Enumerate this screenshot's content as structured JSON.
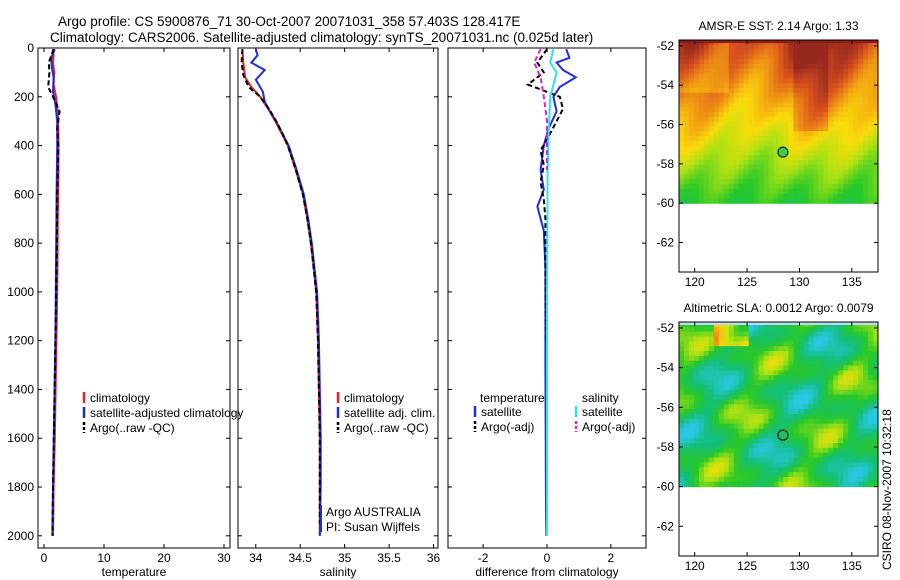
{
  "title": {
    "line1": "Argo profile: CS 5900876_71 30-Oct-2007 20071031_358 57.403S 128.417E",
    "line2": "Climatology: CARS2006. Satellite-adjusted climatology: synTS_20071031.nc (0.025d later)"
  },
  "side_label": "CSIRO 08-Nov-2007 10:32:18",
  "colors": {
    "climatology": "#e8201e",
    "satellite": "#1f2cde",
    "argo": "#000000",
    "sat_salinity": "#2ee6e6",
    "argo_adj_salinity": "#e020d8"
  },
  "chart_data": [
    {
      "type": "line",
      "name": "temperature-profile",
      "xlabel": "temperature",
      "xlim": [
        -1,
        31
      ],
      "ylim": [
        2050,
        0
      ],
      "xticks": [
        "0",
        "10",
        "20",
        "30"
      ],
      "xtick_values": [
        0,
        10,
        20,
        30
      ],
      "yticks": [
        "0",
        "200",
        "400",
        "600",
        "800",
        "1000",
        "1200",
        "1400",
        "1600",
        "1800",
        "2000"
      ],
      "ytick_values": [
        0,
        200,
        400,
        600,
        800,
        1000,
        1200,
        1400,
        1600,
        1800,
        2000
      ],
      "legend": [
        "climatology",
        "satellite-adjusted climatology",
        "Argo(..raw -QC)"
      ],
      "series": [
        {
          "name": "climatology",
          "color": "#e8201e",
          "dash": false,
          "points": [
            [
              1.5,
              5
            ],
            [
              1.6,
              30
            ],
            [
              1.5,
              60
            ],
            [
              1.7,
              100
            ],
            [
              1.6,
              150
            ],
            [
              2.0,
              200
            ],
            [
              2.3,
              260
            ],
            [
              2.4,
              350
            ],
            [
              2.4,
              500
            ],
            [
              2.3,
              700
            ],
            [
              2.2,
              1000
            ],
            [
              2.0,
              1300
            ],
            [
              1.8,
              1600
            ],
            [
              1.6,
              1800
            ],
            [
              1.5,
              2000
            ]
          ]
        },
        {
          "name": "satellite",
          "color": "#1f2cde",
          "dash": false,
          "points": [
            [
              1.8,
              5
            ],
            [
              1.2,
              40
            ],
            [
              1.3,
              80
            ],
            [
              1.6,
              120
            ],
            [
              1.5,
              180
            ],
            [
              1.9,
              230
            ],
            [
              2.2,
              300
            ],
            [
              2.2,
              400
            ],
            [
              2.1,
              600
            ],
            [
              2.0,
              900
            ],
            [
              1.9,
              1200
            ],
            [
              1.7,
              1500
            ],
            [
              1.5,
              1800
            ],
            [
              1.4,
              2000
            ]
          ]
        },
        {
          "name": "argo",
          "color": "#000000",
          "dash": true,
          "points": [
            [
              1.6,
              5
            ],
            [
              0.8,
              60
            ],
            [
              0.9,
              100
            ],
            [
              0.7,
              160
            ],
            [
              1.5,
              200
            ],
            [
              2.6,
              260
            ],
            [
              2.2,
              330
            ],
            [
              2.4,
              400
            ],
            [
              2.2,
              600
            ],
            [
              2.1,
              900
            ],
            [
              1.9,
              1200
            ],
            [
              1.7,
              1500
            ],
            [
              1.5,
              1800
            ],
            [
              1.4,
              2000
            ]
          ]
        }
      ]
    },
    {
      "type": "line",
      "name": "salinity-profile",
      "xlabel": "salinity",
      "xlim": [
        33.8,
        36.05
      ],
      "ylim": [
        2050,
        0
      ],
      "xticks": [
        "34",
        "34.5",
        "35",
        "35.5",
        "36"
      ],
      "xtick_values": [
        34,
        34.5,
        35,
        35.5,
        36
      ],
      "legend": [
        "climatology",
        "satellite adj. clim.",
        "Argo(..raw -QC)"
      ],
      "annotations": [
        "Argo AUSTRALIA",
        "PI: Susan Wijffels"
      ],
      "series": [
        {
          "name": "climatology",
          "color": "#e8201e",
          "dash": false,
          "points": [
            [
              33.85,
              5
            ],
            [
              33.86,
              60
            ],
            [
              33.88,
              120
            ],
            [
              33.95,
              160
            ],
            [
              34.05,
              200
            ],
            [
              34.14,
              250
            ],
            [
              34.22,
              300
            ],
            [
              34.29,
              350
            ],
            [
              34.36,
              400
            ],
            [
              34.45,
              500
            ],
            [
              34.53,
              600
            ],
            [
              34.58,
              700
            ],
            [
              34.62,
              800
            ],
            [
              34.65,
              900
            ],
            [
              34.68,
              1000
            ],
            [
              34.7,
              1200
            ],
            [
              34.71,
              1400
            ],
            [
              34.72,
              1600
            ],
            [
              34.72,
              1800
            ],
            [
              34.72,
              2000
            ]
          ]
        },
        {
          "name": "satellite",
          "color": "#1f2cde",
          "dash": false,
          "points": [
            [
              34.0,
              5
            ],
            [
              34.02,
              30
            ],
            [
              33.95,
              60
            ],
            [
              34.1,
              90
            ],
            [
              34.0,
              130
            ],
            [
              34.08,
              180
            ],
            [
              34.1,
              220
            ],
            [
              34.16,
              260
            ],
            [
              34.23,
              300
            ],
            [
              34.3,
              350
            ],
            [
              34.37,
              400
            ],
            [
              34.46,
              500
            ],
            [
              34.54,
              600
            ],
            [
              34.59,
              700
            ],
            [
              34.63,
              800
            ],
            [
              34.66,
              900
            ],
            [
              34.69,
              1000
            ],
            [
              34.71,
              1200
            ],
            [
              34.72,
              1400
            ],
            [
              34.73,
              1600
            ],
            [
              34.73,
              1800
            ],
            [
              34.72,
              2000
            ]
          ]
        },
        {
          "name": "argo",
          "color": "#000000",
          "dash": true,
          "points": [
            [
              33.85,
              5
            ],
            [
              33.84,
              60
            ],
            [
              33.86,
              110
            ],
            [
              33.92,
              160
            ],
            [
              34.05,
              200
            ],
            [
              34.15,
              250
            ],
            [
              34.23,
              300
            ],
            [
              34.3,
              350
            ],
            [
              34.36,
              400
            ],
            [
              34.45,
              500
            ],
            [
              34.53,
              600
            ],
            [
              34.58,
              700
            ],
            [
              34.62,
              800
            ],
            [
              34.65,
              900
            ],
            [
              34.68,
              1000
            ],
            [
              34.7,
              1200
            ],
            [
              34.71,
              1400
            ],
            [
              34.72,
              1600
            ],
            [
              34.72,
              1800
            ],
            [
              34.72,
              1950
            ]
          ]
        }
      ]
    },
    {
      "type": "line",
      "name": "difference-profile",
      "xlabel": "difference from climatology",
      "xlim": [
        -3.1,
        3.1
      ],
      "ylim": [
        2050,
        0
      ],
      "xticks": [
        "-2",
        "0",
        "2"
      ],
      "xtick_values": [
        -2,
        0,
        2
      ],
      "legend_left": [
        "temperature",
        "satellite",
        "Argo(-adj)"
      ],
      "legend_right": [
        "salinity",
        "satellite",
        "Argo(-adj)"
      ],
      "series": [
        {
          "name": "temperature-satellite",
          "color": "#1f2cde",
          "dash": false,
          "points": [
            [
              0.6,
              5
            ],
            [
              0.7,
              40
            ],
            [
              0.3,
              60
            ],
            [
              0.5,
              90
            ],
            [
              0.9,
              120
            ],
            [
              0.4,
              160
            ],
            [
              0.2,
              200
            ],
            [
              0.3,
              260
            ],
            [
              0.05,
              330
            ],
            [
              -0.1,
              400
            ],
            [
              -0.2,
              500
            ],
            [
              -0.1,
              580
            ],
            [
              -0.3,
              650
            ],
            [
              -0.1,
              750
            ],
            [
              -0.05,
              900
            ],
            [
              -0.05,
              1100
            ],
            [
              -0.05,
              1300
            ],
            [
              -0.04,
              1600
            ],
            [
              -0.03,
              1900
            ],
            [
              -0.02,
              2000
            ]
          ]
        },
        {
          "name": "temperature-argo",
          "color": "#000000",
          "dash": true,
          "points": [
            [
              0.0,
              5
            ],
            [
              -0.3,
              60
            ],
            [
              -0.1,
              100
            ],
            [
              -0.6,
              150
            ],
            [
              0.4,
              200
            ],
            [
              0.5,
              250
            ],
            [
              0.3,
              300
            ],
            [
              0.1,
              350
            ],
            [
              -0.2,
              420
            ],
            [
              -0.1,
              480
            ],
            [
              -0.2,
              550
            ],
            [
              -0.1,
              620
            ],
            [
              -0.05,
              700
            ],
            [
              -0.05,
              900
            ],
            [
              -0.03,
              1200
            ]
          ]
        },
        {
          "name": "salinity-satellite",
          "color": "#2ee6e6",
          "dash": false,
          "points": [
            [
              0.2,
              5
            ],
            [
              0.1,
              60
            ],
            [
              0.3,
              100
            ],
            [
              0.1,
              200
            ],
            [
              0.05,
              350
            ],
            [
              0.02,
              500
            ],
            [
              0.01,
              800
            ],
            [
              0.0,
              1000
            ],
            [
              0.0,
              1500
            ],
            [
              0.0,
              2000
            ]
          ]
        },
        {
          "name": "salinity-argo",
          "color": "#e020d8",
          "dash": true,
          "points": [
            [
              -0.2,
              5
            ],
            [
              -0.4,
              60
            ],
            [
              -0.2,
              120
            ],
            [
              -0.1,
              200
            ],
            [
              0.0,
              300
            ],
            [
              0.0,
              500
            ]
          ]
        }
      ]
    },
    {
      "type": "heatmap",
      "name": "amsre-sst-map",
      "title": "AMSR-E SST: 2.14 Argo: 1.33",
      "xlim": [
        118.5,
        137.5
      ],
      "ylim": [
        -63.5,
        -51.7
      ],
      "data_extent_lat": [
        -60,
        -51.7
      ],
      "xticks": [
        "120",
        "125",
        "130",
        "135"
      ],
      "xtick_values": [
        120,
        125,
        130,
        135
      ],
      "yticks": [
        "-52",
        "-54",
        "-56",
        "-58",
        "-60",
        "-62"
      ],
      "ytick_values": [
        -52,
        -54,
        -56,
        -58,
        -60,
        -62
      ],
      "float_position": [
        128.417,
        -57.403
      ]
    },
    {
      "type": "heatmap",
      "name": "altimetric-sla-map",
      "title": "Altimetric SLA: 0.0012 Argo: 0.0079",
      "xlim": [
        118.5,
        137.5
      ],
      "ylim": [
        -63.5,
        -51.7
      ],
      "data_extent_lat": [
        -60,
        -51.7
      ],
      "xticks": [
        "120",
        "125",
        "130",
        "135"
      ],
      "xtick_values": [
        120,
        125,
        130,
        135
      ],
      "yticks": [
        "-52",
        "-54",
        "-56",
        "-58",
        "-60",
        "-62"
      ],
      "ytick_values": [
        -52,
        -54,
        -56,
        -58,
        -60,
        -62
      ],
      "float_position": [
        128.417,
        -57.403
      ]
    }
  ]
}
